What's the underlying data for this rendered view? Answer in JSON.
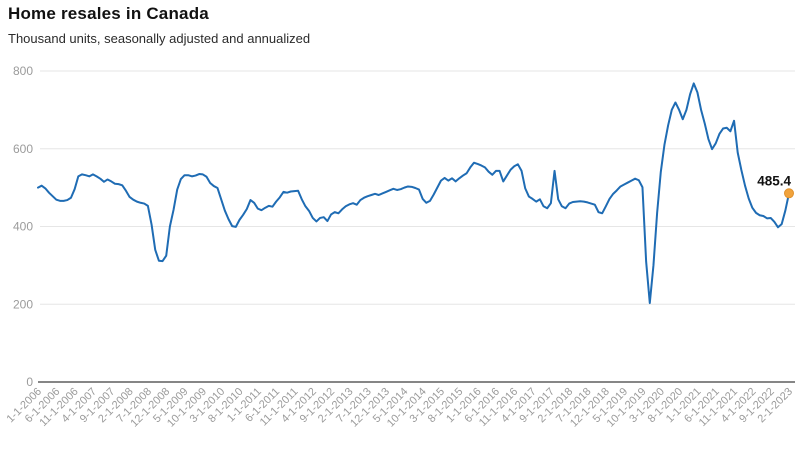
{
  "header": {
    "title": "Home resales in Canada",
    "subtitle": "Thousand units, seasonally adjusted and annualized"
  },
  "chart_data": {
    "type": "line",
    "title": "Home resales in Canada",
    "subtitle": "Thousand units, seasonally adjusted and annualized",
    "ylabel": "Thousand units",
    "ylim": [
      0,
      800
    ],
    "y_ticks": [
      0,
      200,
      400,
      600,
      800
    ],
    "grid": "horizontal",
    "legend": "none",
    "x_label_step": 5,
    "x_labels": [
      "1-1-2006",
      "6-1-2006",
      "11-1-2006",
      "4-1-2007",
      "9-1-2007",
      "2-1-2008",
      "7-1-2008",
      "12-1-2008",
      "5-1-2009",
      "10-1-2009",
      "3-1-2010",
      "8-1-2010",
      "1-1-2011",
      "6-1-2011",
      "11-1-2011",
      "4-1-2012",
      "9-1-2012",
      "2-1-2013",
      "7-1-2013",
      "12-1-2013",
      "5-1-2014",
      "10-1-2014",
      "3-1-2015",
      "8-1-2015",
      "1-1-2016",
      "6-1-2016",
      "11-1-2016",
      "4-1-2017",
      "9-1-2017",
      "2-1-2018",
      "7-1-2018",
      "12-1-2018",
      "5-1-2019",
      "10-1-2019",
      "3-1-2020",
      "8-1-2020",
      "1-1-2021",
      "6-1-2021",
      "11-1-2021",
      "4-1-2022",
      "9-1-2022",
      "2-1-2023"
    ],
    "series": [
      {
        "name": "Home resales",
        "color": "#1f6cb4",
        "values": [
          500,
          505,
          498,
          487,
          478,
          469,
          466,
          466,
          468,
          474,
          496,
          529,
          534,
          532,
          529,
          534,
          529,
          523,
          515,
          521,
          516,
          510,
          509,
          506,
          492,
          476,
          469,
          464,
          461,
          459,
          453,
          405,
          340,
          312,
          311,
          325,
          400,
          443,
          495,
          522,
          532,
          532,
          529,
          531,
          535,
          534,
          528,
          512,
          504,
          499,
          470,
          441,
          419,
          401,
          399,
          417,
          430,
          445,
          468,
          461,
          446,
          442,
          448,
          453,
          451,
          464,
          475,
          489,
          487,
          490,
          491,
          492,
          470,
          452,
          440,
          422,
          413,
          422,
          424,
          414,
          431,
          437,
          434,
          444,
          452,
          457,
          460,
          456,
          468,
          474,
          478,
          481,
          484,
          481,
          485,
          489,
          493,
          497,
          494,
          496,
          500,
          503,
          502,
          499,
          495,
          471,
          461,
          466,
          482,
          500,
          518,
          525,
          518,
          524,
          516,
          524,
          531,
          537,
          552,
          564,
          561,
          557,
          552,
          541,
          533,
          543,
          543,
          516,
          531,
          546,
          555,
          560,
          543,
          498,
          477,
          471,
          464,
          470,
          452,
          447,
          460,
          543,
          470,
          452,
          447,
          459,
          463,
          464,
          465,
          464,
          462,
          459,
          456,
          437,
          434,
          452,
          471,
          484,
          493,
          503,
          508,
          513,
          518,
          523,
          519,
          501,
          310,
          203,
          300,
          435,
          540,
          610,
          660,
          700,
          719,
          700,
          676,
          700,
          740,
          768,
          745,
          700,
          665,
          625,
          599,
          614,
          638,
          652,
          654,
          645,
          672,
          590,
          545,
          505,
          472,
          448,
          435,
          429,
          427,
          421,
          422,
          412,
          398,
          406,
          441,
          485.4
        ]
      }
    ],
    "last_point": {
      "value": 485.4,
      "label": "485.4",
      "marker_color": "#f1a33c",
      "marker_edge_color": "#e0922e"
    },
    "colors": {
      "line": "#1f6cb4",
      "grid": "#e6e6e6",
      "axis": "#5f5f5f",
      "tick_text": "#9b9b9b"
    }
  }
}
